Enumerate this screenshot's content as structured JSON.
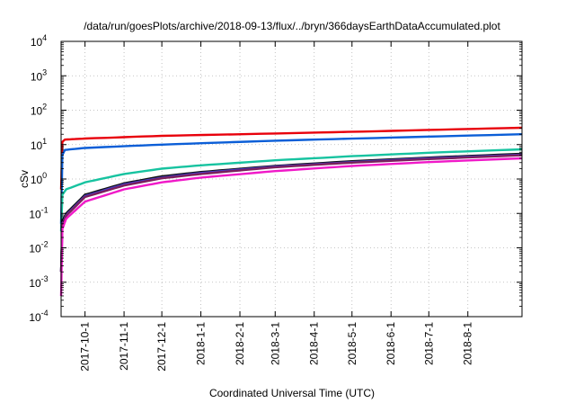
{
  "chart_data": {
    "type": "line",
    "title": "/data/run/goesPlots/archive/2018-09-13/flux/../bryn/366daysEarthDataAccumulated.plot",
    "xlabel": "Coordinated Universal Time (UTC)",
    "ylabel": "cSv",
    "y_scale": "log",
    "ylim": [
      0.0001,
      10000
    ],
    "xlim": [
      "2017-09-12",
      "2018-09-13"
    ],
    "grid": true,
    "legend": "none",
    "y_ticks": [
      {
        "value": 0.0001,
        "base": "10",
        "exp": "-4"
      },
      {
        "value": 0.001,
        "base": "10",
        "exp": "-3"
      },
      {
        "value": 0.01,
        "base": "10",
        "exp": "-2"
      },
      {
        "value": 0.1,
        "base": "10",
        "exp": "-1"
      },
      {
        "value": 1,
        "base": "10",
        "exp": "0"
      },
      {
        "value": 10,
        "base": "10",
        "exp": "1"
      },
      {
        "value": 100,
        "base": "10",
        "exp": "2"
      },
      {
        "value": 1000,
        "base": "10",
        "exp": "3"
      },
      {
        "value": 10000,
        "base": "10",
        "exp": "4"
      }
    ],
    "x_ticks": [
      {
        "label": "2017-10-1",
        "date": "2017-10-01"
      },
      {
        "label": "2017-11-1",
        "date": "2017-11-01"
      },
      {
        "label": "2017-12-1",
        "date": "2017-12-01"
      },
      {
        "label": "2018-1-1",
        "date": "2018-01-01"
      },
      {
        "label": "2018-2-1",
        "date": "2018-02-01"
      },
      {
        "label": "2018-3-1",
        "date": "2018-03-01"
      },
      {
        "label": "2018-4-1",
        "date": "2018-04-01"
      },
      {
        "label": "2018-5-1",
        "date": "2018-05-01"
      },
      {
        "label": "2018-6-1",
        "date": "2018-06-01"
      },
      {
        "label": "2018-7-1",
        "date": "2018-07-01"
      },
      {
        "label": "2018-8-1",
        "date": "2018-08-01"
      }
    ],
    "series": [
      {
        "color": "#e8000b",
        "x": [
          "2017-09-12",
          "2017-09-13",
          "2017-09-15",
          "2017-10-01",
          "2017-12-01",
          "2018-03-01",
          "2018-06-01",
          "2018-09-13"
        ],
        "y": [
          0.5,
          12,
          14,
          15,
          18,
          21,
          25,
          31
        ]
      },
      {
        "color": "#0b5ed7",
        "x": [
          "2017-09-12",
          "2017-09-13",
          "2017-09-15",
          "2017-10-01",
          "2017-12-01",
          "2018-03-01",
          "2018-06-01",
          "2018-09-13"
        ],
        "y": [
          0.05,
          5,
          7,
          8,
          10,
          13,
          16,
          20
        ]
      },
      {
        "color": "#17c3a0",
        "x": [
          "2017-09-12",
          "2017-09-13",
          "2017-09-16",
          "2017-10-01",
          "2017-11-01",
          "2017-12-01",
          "2018-01-01",
          "2018-03-01",
          "2018-05-01",
          "2018-07-01",
          "2018-09-13"
        ],
        "y": [
          0.03,
          0.35,
          0.5,
          0.8,
          1.4,
          2.0,
          2.5,
          3.5,
          4.6,
          5.8,
          7.3
        ]
      },
      {
        "color": "#111111",
        "x": [
          "2017-09-12",
          "2017-09-13",
          "2017-09-16",
          "2017-10-01",
          "2017-11-01",
          "2017-12-01",
          "2018-01-01",
          "2018-03-01",
          "2018-05-01",
          "2018-07-01",
          "2018-09-13"
        ],
        "y": [
          0.002,
          0.06,
          0.1,
          0.35,
          0.75,
          1.2,
          1.6,
          2.4,
          3.3,
          4.2,
          5.4
        ]
      },
      {
        "color": "#4b3cc9",
        "x": [
          "2017-09-12",
          "2017-09-13",
          "2017-09-16",
          "2017-10-01",
          "2017-11-01",
          "2017-12-01",
          "2018-01-01",
          "2018-03-01",
          "2018-05-01",
          "2018-07-01",
          "2018-09-13"
        ],
        "y": [
          0.002,
          0.05,
          0.09,
          0.32,
          0.7,
          1.1,
          1.5,
          2.3,
          3.1,
          4.0,
          5.1
        ]
      },
      {
        "color": "#7a1f5c",
        "x": [
          "2017-09-12",
          "2017-09-13",
          "2017-09-16",
          "2017-10-01",
          "2017-11-01",
          "2017-12-01",
          "2018-01-01",
          "2018-03-01",
          "2018-05-01",
          "2018-07-01",
          "2018-09-13"
        ],
        "y": [
          0.002,
          0.045,
          0.085,
          0.3,
          0.65,
          1.05,
          1.4,
          2.2,
          3.0,
          3.8,
          4.9
        ]
      },
      {
        "color": "#f019c8",
        "x": [
          "2017-09-12",
          "2017-09-13",
          "2017-09-16",
          "2017-10-01",
          "2017-11-01",
          "2017-12-01",
          "2018-01-01",
          "2018-03-01",
          "2018-05-01",
          "2018-07-01",
          "2018-09-13"
        ],
        "y": [
          0.0004,
          0.035,
          0.07,
          0.22,
          0.5,
          0.8,
          1.1,
          1.7,
          2.4,
          3.1,
          4.0
        ]
      }
    ]
  }
}
